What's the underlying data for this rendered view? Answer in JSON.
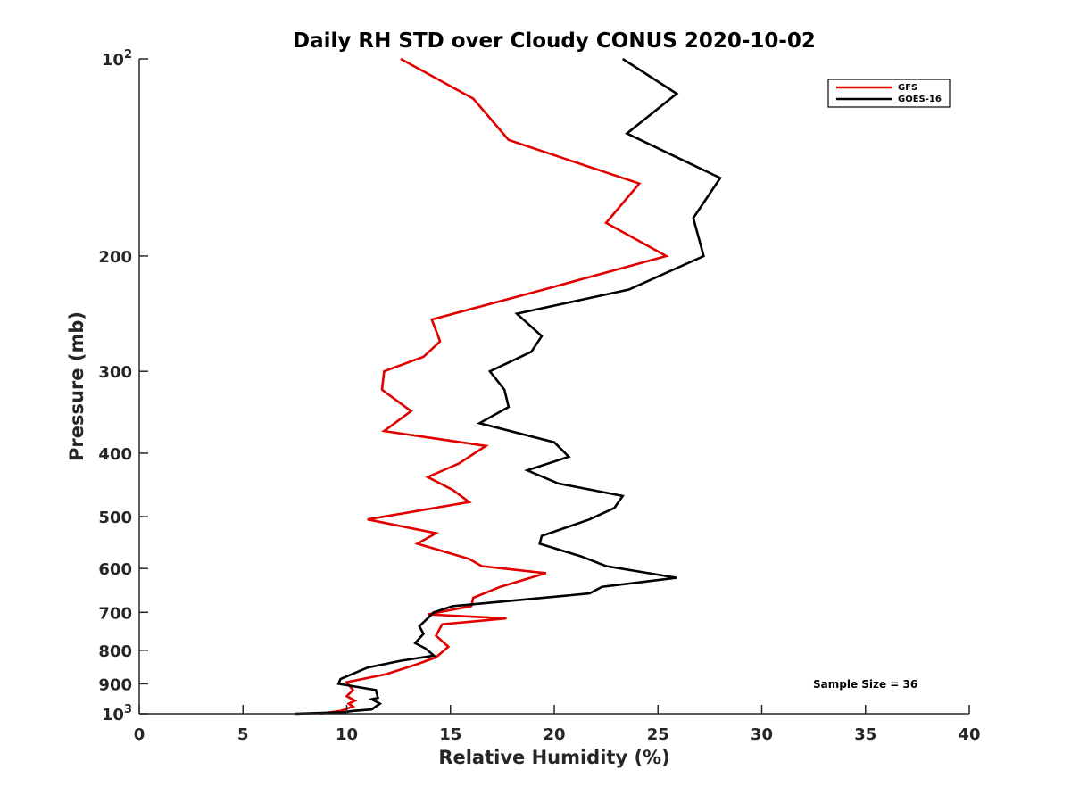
{
  "chart_data": {
    "type": "line",
    "title": "Daily RH STD over Cloudy CONUS 2020-10-02",
    "xlabel": "Relative Humidity (%)",
    "ylabel": "Pressure (mb)",
    "xlim": [
      0,
      40
    ],
    "ylim": [
      100,
      1000
    ],
    "y_scale": "log",
    "y_reversed": true,
    "grid": false,
    "legend_position": "top-right",
    "x_ticks": [
      0,
      5,
      10,
      15,
      20,
      25,
      30,
      35,
      40
    ],
    "x_tick_labels": [
      "0",
      "5",
      "10",
      "15",
      "20",
      "25",
      "30",
      "35",
      "40"
    ],
    "y_ticks": [
      {
        "value": 100,
        "base": "10",
        "exp": "2"
      },
      {
        "value": 200,
        "label": "200"
      },
      {
        "value": 300,
        "label": "300"
      },
      {
        "value": 400,
        "label": "400"
      },
      {
        "value": 500,
        "label": "500"
      },
      {
        "value": 600,
        "label": "600"
      },
      {
        "value": 700,
        "label": "700"
      },
      {
        "value": 800,
        "label": "800"
      },
      {
        "value": 900,
        "label": "900"
      },
      {
        "value": 1000,
        "base": "10",
        "exp": "3"
      }
    ],
    "annotation": "Sample Size = 36",
    "series": [
      {
        "name": "GFS",
        "color": "#e00000",
        "points": [
          [
            12.6,
            100
          ],
          [
            16.1,
            115
          ],
          [
            17.8,
            133
          ],
          [
            24.1,
            155
          ],
          [
            22.5,
            178
          ],
          [
            25.4,
            200
          ],
          [
            19.5,
            225
          ],
          [
            14.1,
            250
          ],
          [
            14.5,
            270
          ],
          [
            13.7,
            285
          ],
          [
            11.8,
            300
          ],
          [
            11.7,
            320
          ],
          [
            13.1,
            345
          ],
          [
            11.8,
            370
          ],
          [
            16.7,
            390
          ],
          [
            15.4,
            415
          ],
          [
            13.9,
            435
          ],
          [
            15.1,
            455
          ],
          [
            15.9,
            475
          ],
          [
            11.0,
            505
          ],
          [
            14.3,
            530
          ],
          [
            13.4,
            550
          ],
          [
            15.9,
            580
          ],
          [
            16.5,
            595
          ],
          [
            19.6,
            610
          ],
          [
            17.4,
            640
          ],
          [
            16.1,
            665
          ],
          [
            16.0,
            685
          ],
          [
            13.9,
            705
          ],
          [
            17.7,
            715
          ],
          [
            14.6,
            730
          ],
          [
            14.3,
            760
          ],
          [
            14.9,
            790
          ],
          [
            14.3,
            820
          ],
          [
            13.4,
            840
          ],
          [
            11.9,
            870
          ],
          [
            10.0,
            895
          ],
          [
            10.3,
            920
          ],
          [
            10.0,
            940
          ],
          [
            10.4,
            955
          ],
          [
            10.1,
            965
          ],
          [
            10.3,
            975
          ],
          [
            9.7,
            990
          ],
          [
            8.7,
            1000
          ]
        ]
      },
      {
        "name": "GOES-16",
        "color": "#000000",
        "points": [
          [
            23.3,
            100
          ],
          [
            25.9,
            113
          ],
          [
            23.5,
            130
          ],
          [
            28.0,
            152
          ],
          [
            26.7,
            175
          ],
          [
            27.2,
            200
          ],
          [
            23.6,
            225
          ],
          [
            18.2,
            245
          ],
          [
            19.4,
            265
          ],
          [
            18.9,
            280
          ],
          [
            16.9,
            300
          ],
          [
            17.6,
            320
          ],
          [
            17.8,
            340
          ],
          [
            16.4,
            360
          ],
          [
            20.0,
            385
          ],
          [
            20.7,
            405
          ],
          [
            18.7,
            425
          ],
          [
            20.2,
            445
          ],
          [
            23.3,
            465
          ],
          [
            22.9,
            485
          ],
          [
            21.7,
            505
          ],
          [
            19.4,
            535
          ],
          [
            19.3,
            550
          ],
          [
            21.3,
            575
          ],
          [
            22.5,
            595
          ],
          [
            25.9,
            620
          ],
          [
            22.3,
            640
          ],
          [
            21.7,
            655
          ],
          [
            18.4,
            670
          ],
          [
            15.1,
            685
          ],
          [
            14.2,
            700
          ],
          [
            13.5,
            735
          ],
          [
            13.7,
            755
          ],
          [
            13.3,
            780
          ],
          [
            13.8,
            795
          ],
          [
            14.2,
            815
          ],
          [
            12.6,
            830
          ],
          [
            11.0,
            850
          ],
          [
            9.7,
            885
          ],
          [
            9.6,
            900
          ],
          [
            11.4,
            920
          ],
          [
            11.5,
            945
          ],
          [
            11.2,
            950
          ],
          [
            11.6,
            965
          ],
          [
            11.2,
            985
          ],
          [
            10.3,
            990
          ],
          [
            9.8,
            995
          ],
          [
            7.5,
            1000
          ]
        ]
      }
    ]
  }
}
